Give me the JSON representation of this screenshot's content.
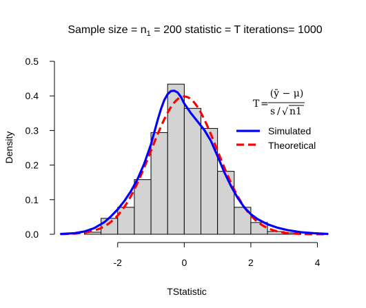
{
  "chart_data": {
    "type": "bar",
    "title_parts": {
      "prefix": "Sample size = n",
      "subscript": "1",
      "suffix": " = 200 statistic = T iterations= 1000"
    },
    "xlabel": "TStatistic",
    "ylabel": "Density",
    "xlim": [
      -3.9,
      4.3
    ],
    "ylim": [
      0,
      0.5
    ],
    "xticks": [
      -2,
      0,
      2,
      4
    ],
    "xtick_labels": [
      "-2",
      "0",
      "2",
      "4"
    ],
    "yticks": [
      0.0,
      0.1,
      0.2,
      0.3,
      0.4,
      0.5
    ],
    "ytick_labels": [
      "0.0",
      "0.1",
      "0.2",
      "0.3",
      "0.4",
      "0.5"
    ],
    "histogram": {
      "bin_edges": [
        -3.0,
        -2.5,
        -2.0,
        -1.5,
        -1.0,
        -0.5,
        0.0,
        0.5,
        1.0,
        1.5,
        2.0,
        2.5,
        3.0,
        3.5
      ],
      "densities": [
        0.006,
        0.046,
        0.078,
        0.158,
        0.294,
        0.434,
        0.364,
        0.306,
        0.182,
        0.078,
        0.034,
        0.008,
        0.004
      ],
      "fill": "#d3d3d3",
      "stroke": "#000000"
    },
    "series": [
      {
        "name": "Simulated",
        "color": "#0000ff",
        "style": "solid",
        "x": [
          -3.7,
          -3.3,
          -3.0,
          -2.7,
          -2.4,
          -2.2,
          -2.0,
          -1.8,
          -1.6,
          -1.4,
          -1.2,
          -1.0,
          -0.9,
          -0.8,
          -0.7,
          -0.6,
          -0.5,
          -0.4,
          -0.3,
          -0.2,
          -0.1,
          0.0,
          0.2,
          0.4,
          0.6,
          0.8,
          1.0,
          1.2,
          1.4,
          1.6,
          1.8,
          2.0,
          2.2,
          2.5,
          2.8,
          3.1,
          3.5,
          3.9,
          4.3
        ],
        "y": [
          0.001,
          0.003,
          0.008,
          0.018,
          0.035,
          0.052,
          0.072,
          0.096,
          0.125,
          0.16,
          0.205,
          0.26,
          0.295,
          0.33,
          0.362,
          0.388,
          0.405,
          0.414,
          0.415,
          0.41,
          0.397,
          0.378,
          0.35,
          0.326,
          0.302,
          0.27,
          0.226,
          0.18,
          0.14,
          0.106,
          0.078,
          0.058,
          0.044,
          0.029,
          0.019,
          0.012,
          0.006,
          0.003,
          0.001
        ]
      },
      {
        "name": "Theoretical",
        "color": "#ff0000",
        "style": "dashed",
        "distribution": "student-t",
        "df": 199,
        "x_range": [
          -3.7,
          4.3
        ]
      }
    ],
    "legend": {
      "position": "top-right",
      "entries": [
        "Simulated",
        "Theoretical"
      ]
    },
    "annotation": {
      "lhs": "T",
      "eq": "=",
      "numerator": "(ȳ − μ)",
      "denominator_s": "s",
      "denominator_slash": "/",
      "sqrt_symbol": "√",
      "denominator_n": "n1"
    }
  }
}
